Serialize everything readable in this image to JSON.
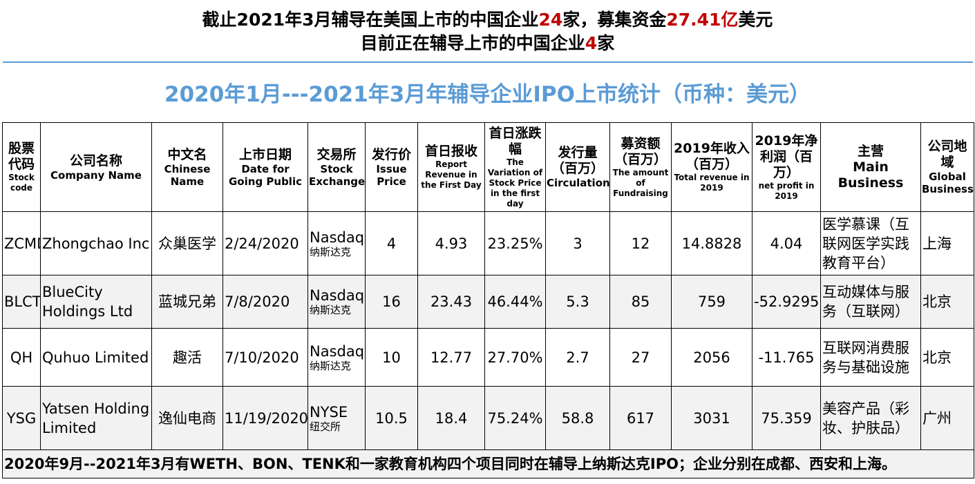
{
  "headline": {
    "line1_a": "截止2021年3月辅导在美国上市的中国企业",
    "line1_count": "24",
    "line1_b": "家，募集资金",
    "line1_amount": "27.41亿",
    "line1_c": "美元",
    "line2_a": "目前正在辅导上市的中国企业",
    "line2_count": "4",
    "line2_b": "家"
  },
  "subtitle": "2020年1月---2021年3月年辅导企业IPO上市统计（币种：美元）",
  "colors": {
    "accent_blue": "#5b9bd5",
    "highlight_red": "#c00000"
  },
  "table": {
    "headers": [
      {
        "cn": "股票代码",
        "en": "Stock code"
      },
      {
        "cn": "公司名称",
        "en": "Company Name"
      },
      {
        "cn": "中文名",
        "en": "Chinese Name"
      },
      {
        "cn": "上市日期",
        "en": "Date for Going Public"
      },
      {
        "cn": "交易所",
        "en": "Stock Exchange"
      },
      {
        "cn": "发行价",
        "en": "Issue Price"
      },
      {
        "cn": "首日报收",
        "en": "Report Revenue in the First Day"
      },
      {
        "cn": "首日涨跌幅",
        "en": "The Variation of Stock Price in the first day"
      },
      {
        "cn": "发行量（百万）",
        "en": "Circulation"
      },
      {
        "cn": "募资额（百万）",
        "en": "The amount of Fundraising"
      },
      {
        "cn": "2019年收入（百万）",
        "en": "Total revenue in 2019"
      },
      {
        "cn": "2019年净利润（百万）",
        "en": "net profit in 2019"
      },
      {
        "cn": "主营",
        "en": "Main Business"
      },
      {
        "cn": "公司地域",
        "en": "Global Business"
      }
    ],
    "rows": [
      {
        "code": "ZCMD",
        "name": "Zhongchao Inc",
        "cn_name": "众巢医学",
        "date": "2/24/2020",
        "exchange_en": "Nasdaq",
        "exchange_cn": "纳斯达克",
        "issue_price": "4",
        "first_day_close": "4.93",
        "first_day_change": "23.25%",
        "circulation": "3",
        "fundraising": "12",
        "revenue_2019": "14.8828",
        "net_profit_2019": "4.04",
        "business": "医学慕课（互联网医学实践教育平台）",
        "region": "上海"
      },
      {
        "code": "BLCT",
        "name": "BlueCity Holdings Ltd",
        "cn_name": "蓝城兄弟",
        "date": "7/8/2020",
        "exchange_en": "Nasdaq",
        "exchange_cn": "纳斯达克",
        "issue_price": "16",
        "first_day_close": "23.43",
        "first_day_change": "46.44%",
        "circulation": "5.3",
        "fundraising": "85",
        "revenue_2019": "759",
        "net_profit_2019": "-52.9295",
        "business": "互动媒体与服务（互联网）",
        "region": "北京"
      },
      {
        "code": "QH",
        "name": "Quhuo Limited",
        "cn_name": "趣活",
        "date": "7/10/2020",
        "exchange_en": "Nasdaq",
        "exchange_cn": "纳斯达克",
        "issue_price": "10",
        "first_day_close": "12.77",
        "first_day_change": "27.70%",
        "circulation": "2.7",
        "fundraising": "27",
        "revenue_2019": "2056",
        "net_profit_2019": "-11.765",
        "business": "互联网消费服务与基础设施",
        "region": "北京"
      },
      {
        "code": "YSG",
        "name": "Yatsen Holding Limited",
        "cn_name": "逸仙电商",
        "date": "11/19/2020",
        "exchange_en": "NYSE",
        "exchange_cn": "纽交所",
        "issue_price": "10.5",
        "first_day_close": "18.4",
        "first_day_change": "75.24%",
        "circulation": "58.8",
        "fundraising": "617",
        "revenue_2019": "3031",
        "net_profit_2019": "75.359",
        "business": "美容产品（彩妆、护肤品）",
        "region": "广州"
      }
    ],
    "footnote": "2020年9月--2021年3月有WETH、BON、TENK和一家教育机构四个项目同时在辅导上纳斯达克IPO；企业分别在成都、西安和上海。"
  }
}
